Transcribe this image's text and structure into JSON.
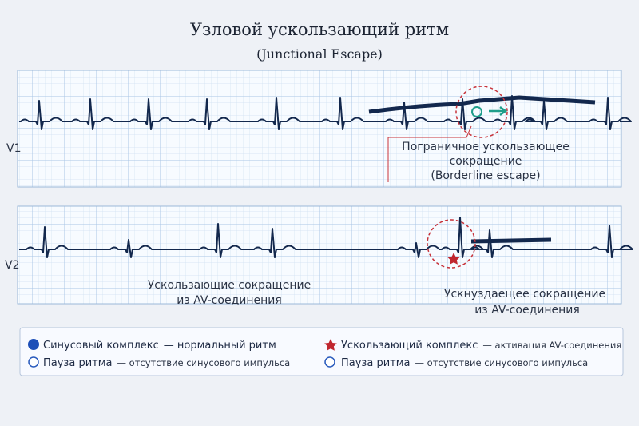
{
  "header": {
    "title": "Узловой ускользающий ритм",
    "subtitle": "(Junctional Escape)"
  },
  "strips": [
    {
      "lead": "V1",
      "annotation": [
        "Пограничное ускользающее",
        "сокращение",
        "(Borderline escape)"
      ]
    },
    {
      "lead": "V2",
      "annotations": [
        [
          "Ускользающие сокращение",
          "из AV-соединения"
        ],
        [
          "Ускнуздаещее сокращение",
          "из AV-соединения"
        ]
      ]
    }
  ],
  "legend": [
    {
      "term": "Синусовый комплекс",
      "desc": "— нормальный ритм"
    },
    {
      "term": "Пауза ритма",
      "desc": "— отсутствие синусового импульса"
    },
    {
      "term": "Ускользающий комплекс",
      "desc": "— активация AV-соединения"
    },
    {
      "term": "Пауза ритма",
      "desc": "— отсутствие синусового импульса"
    }
  ]
}
